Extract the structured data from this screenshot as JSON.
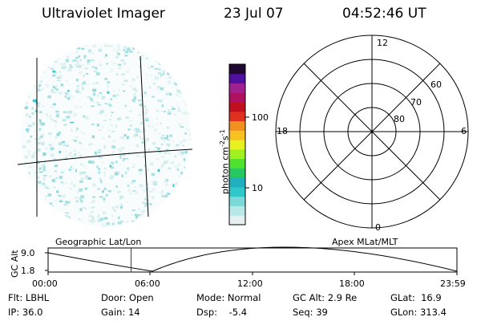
{
  "header": {
    "instrument": "Ultraviolet Imager",
    "date": "23 Jul 07",
    "time": "04:52:46 UT"
  },
  "colorbar": {
    "label_prefix": "photon cm",
    "label_exp1": "-2",
    "label_mid": "s",
    "label_exp2": "-1",
    "ticks": [
      "100",
      "10"
    ],
    "colors": [
      "#e6f0f0",
      "#b8e8e8",
      "#7dd8d8",
      "#2ec8c8",
      "#20b0c0",
      "#28c860",
      "#50e030",
      "#a0f020",
      "#e8f020",
      "#f8c020",
      "#f09020",
      "#e03020",
      "#c01020",
      "#b01060",
      "#a02090",
      "#5010a0",
      "#200830"
    ]
  },
  "polar_plot": {
    "mlt_labels": {
      "top": "12",
      "left": "18",
      "right": "6",
      "bottom": "0"
    },
    "lat_labels": [
      "60",
      "70",
      "80"
    ]
  },
  "timeline": {
    "left_title": "Geographic Lat/Lon",
    "right_title": "Apex MLat/MLT",
    "y_axis_label": "GC Alt",
    "y_ticks": [
      "9.0",
      "1.8"
    ],
    "x_ticks": [
      "00:00",
      "06:00",
      "12:00",
      "18:00",
      "23:59"
    ],
    "marker_time": "04:52",
    "marker_color": "#cc0000"
  },
  "info": {
    "row1": [
      {
        "label": "Flt:",
        "value": "LBHL"
      },
      {
        "label": "Door:",
        "value": "Open"
      },
      {
        "label": "Mode:",
        "value": "Normal"
      },
      {
        "label": "GC Alt:",
        "value": "2.9 Re"
      },
      {
        "label": "GLat:",
        "value": "16.9"
      }
    ],
    "row2": [
      {
        "label": "IP:",
        "value": "36.0"
      },
      {
        "label": "Gain:",
        "value": "14"
      },
      {
        "label": "Dsp:",
        "value": "-5.4"
      },
      {
        "label": "Seq:",
        "value": "39"
      },
      {
        "label": "GLon:",
        "value": "313.4"
      }
    ]
  }
}
